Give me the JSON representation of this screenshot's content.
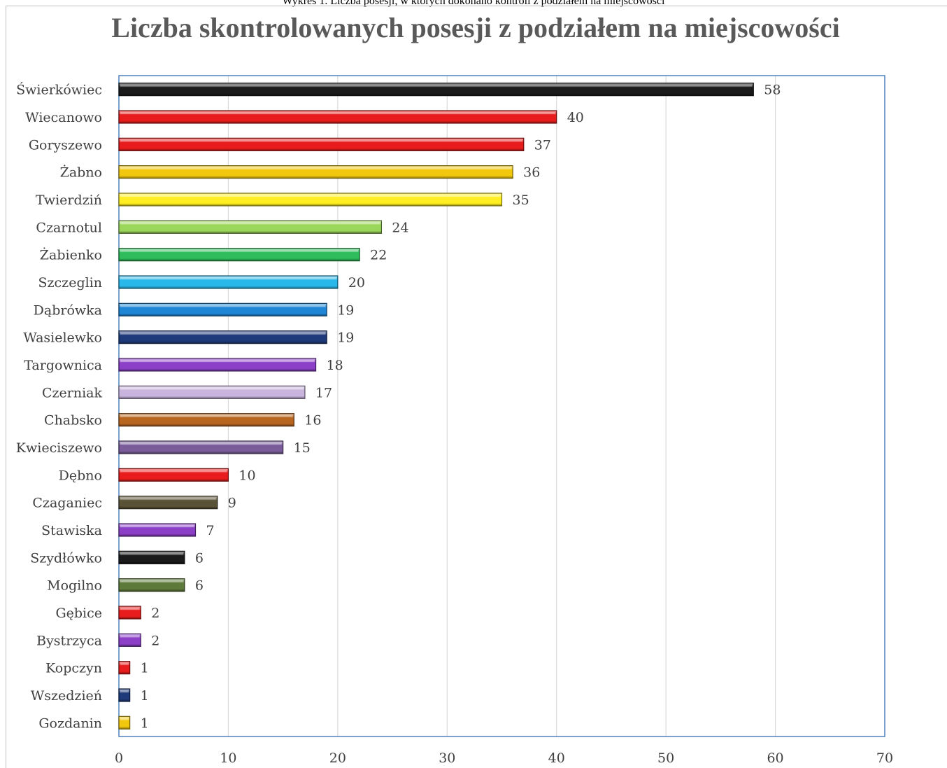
{
  "caption": "Wykres 1. Liczba posesji, w których dokonano kontroli z podziałem na miejscowości",
  "chart_data": {
    "type": "bar",
    "orientation": "horizontal",
    "title": "Liczba skontrolowanych posesji z podziałem na miejscowości",
    "xlabel": "",
    "ylabel": "",
    "xlim": [
      0,
      70
    ],
    "x_ticks": [
      0,
      10,
      20,
      30,
      40,
      50,
      60,
      70
    ],
    "grid": true,
    "legend": "none",
    "categories": [
      "Świerkówiec",
      "Wiecanowo",
      "Goryszewo",
      "Żabno",
      "Twierdziń",
      "Czarnotul",
      "Żabienko",
      "Szczeglin",
      "Dąbrówka",
      "Wasielewko",
      "Targownica",
      "Czerniak",
      "Chabsko",
      "Kwieciszewo",
      "Dębno",
      "Czaganiec",
      "Stawiska",
      "Szydłówko",
      "Mogilno",
      "Gębice",
      "Bystrzyca",
      "Kopczyn",
      "Wszedzień",
      "Gozdanin"
    ],
    "values": [
      58,
      40,
      37,
      36,
      35,
      24,
      22,
      20,
      19,
      19,
      18,
      17,
      16,
      15,
      10,
      9,
      7,
      6,
      6,
      2,
      2,
      1,
      1,
      1
    ],
    "colors": [
      "#1a1a1a",
      "#e81c1c",
      "#e81c1c",
      "#f2c80f",
      "#ffee22",
      "#9ad65a",
      "#2ebd5a",
      "#29b8ea",
      "#1f86d6",
      "#1f3a7a",
      "#8c40c8",
      "#c8b4dc",
      "#b8651f",
      "#7a5c9a",
      "#e81c1c",
      "#5a5236",
      "#8c40c8",
      "#1a1a1a",
      "#5e7a3a",
      "#e81c1c",
      "#8c40c8",
      "#e81c1c",
      "#1f3a7a",
      "#f2c80f"
    ]
  }
}
